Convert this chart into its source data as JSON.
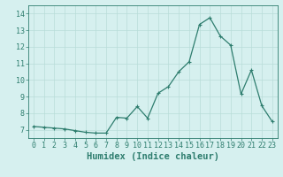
{
  "x": [
    0,
    1,
    2,
    3,
    4,
    5,
    6,
    7,
    8,
    9,
    10,
    11,
    12,
    13,
    14,
    15,
    16,
    17,
    18,
    19,
    20,
    21,
    22,
    23
  ],
  "y": [
    7.2,
    7.15,
    7.1,
    7.05,
    6.95,
    6.85,
    6.8,
    6.8,
    7.75,
    7.7,
    8.4,
    7.7,
    9.2,
    9.6,
    10.5,
    11.1,
    13.35,
    13.75,
    12.65,
    12.1,
    9.15,
    10.6,
    8.45,
    7.5
  ],
  "line_color": "#2e7d6e",
  "marker": "+",
  "marker_size": 3,
  "bg_color": "#d6f0ef",
  "grid_color": "#b8ddd9",
  "xlabel": "Humidex (Indice chaleur)",
  "xlim": [
    -0.5,
    23.5
  ],
  "ylim": [
    6.5,
    14.5
  ],
  "yticks": [
    7,
    8,
    9,
    10,
    11,
    12,
    13,
    14
  ],
  "xticks": [
    0,
    1,
    2,
    3,
    4,
    5,
    6,
    7,
    8,
    9,
    10,
    11,
    12,
    13,
    14,
    15,
    16,
    17,
    18,
    19,
    20,
    21,
    22,
    23
  ],
  "tick_color": "#2e7d6e",
  "tick_fontsize": 6,
  "xlabel_fontsize": 7.5,
  "spine_color": "#2e7d6e",
  "linewidth": 0.9,
  "markeredgewidth": 0.8
}
